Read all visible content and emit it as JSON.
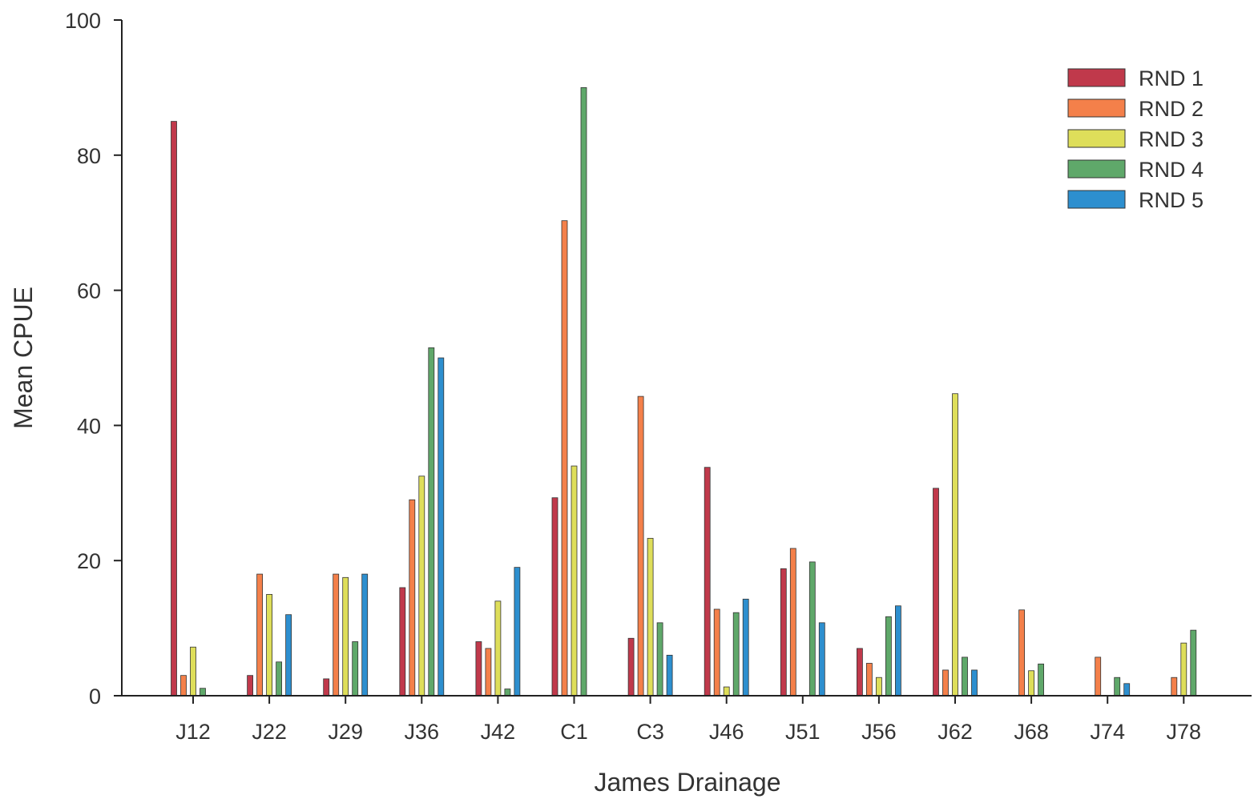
{
  "chart_data": {
    "type": "bar",
    "title": "",
    "xlabel": "James Drainage",
    "ylabel": "Mean CPUE",
    "ylim": [
      0,
      100
    ],
    "yticks": [
      0,
      20,
      40,
      60,
      80,
      100
    ],
    "grid": false,
    "legend_position": "top-right",
    "categories": [
      "J12",
      "J22",
      "J29",
      "J36",
      "J42",
      "C1",
      "C3",
      "J46",
      "J51",
      "J56",
      "J62",
      "J68",
      "J74",
      "J78"
    ],
    "series": [
      {
        "name": "RND 1",
        "color": "#c0394b",
        "values": [
          85,
          3,
          2.5,
          16,
          8,
          29.3,
          8.5,
          33.8,
          18.8,
          7,
          30.7,
          null,
          null,
          null
        ]
      },
      {
        "name": "RND 2",
        "color": "#f4804a",
        "values": [
          3,
          18,
          18,
          29,
          7,
          70.3,
          44.3,
          12.8,
          21.8,
          4.8,
          3.8,
          12.7,
          5.7,
          2.7
        ]
      },
      {
        "name": "RND 3",
        "color": "#dede5a",
        "values": [
          7.2,
          15,
          17.5,
          32.5,
          14,
          34,
          23.3,
          1.3,
          null,
          2.7,
          44.7,
          3.7,
          null,
          7.8
        ]
      },
      {
        "name": "RND 4",
        "color": "#5fa86a",
        "values": [
          1.1,
          5,
          8,
          51.5,
          1,
          90,
          10.8,
          12.3,
          19.8,
          11.7,
          5.7,
          4.7,
          2.7,
          9.7
        ]
      },
      {
        "name": "RND 5",
        "color": "#2d8fcf",
        "values": [
          null,
          12,
          18,
          50,
          19,
          null,
          6,
          14.3,
          10.8,
          13.3,
          3.8,
          null,
          1.8,
          null
        ]
      }
    ]
  }
}
